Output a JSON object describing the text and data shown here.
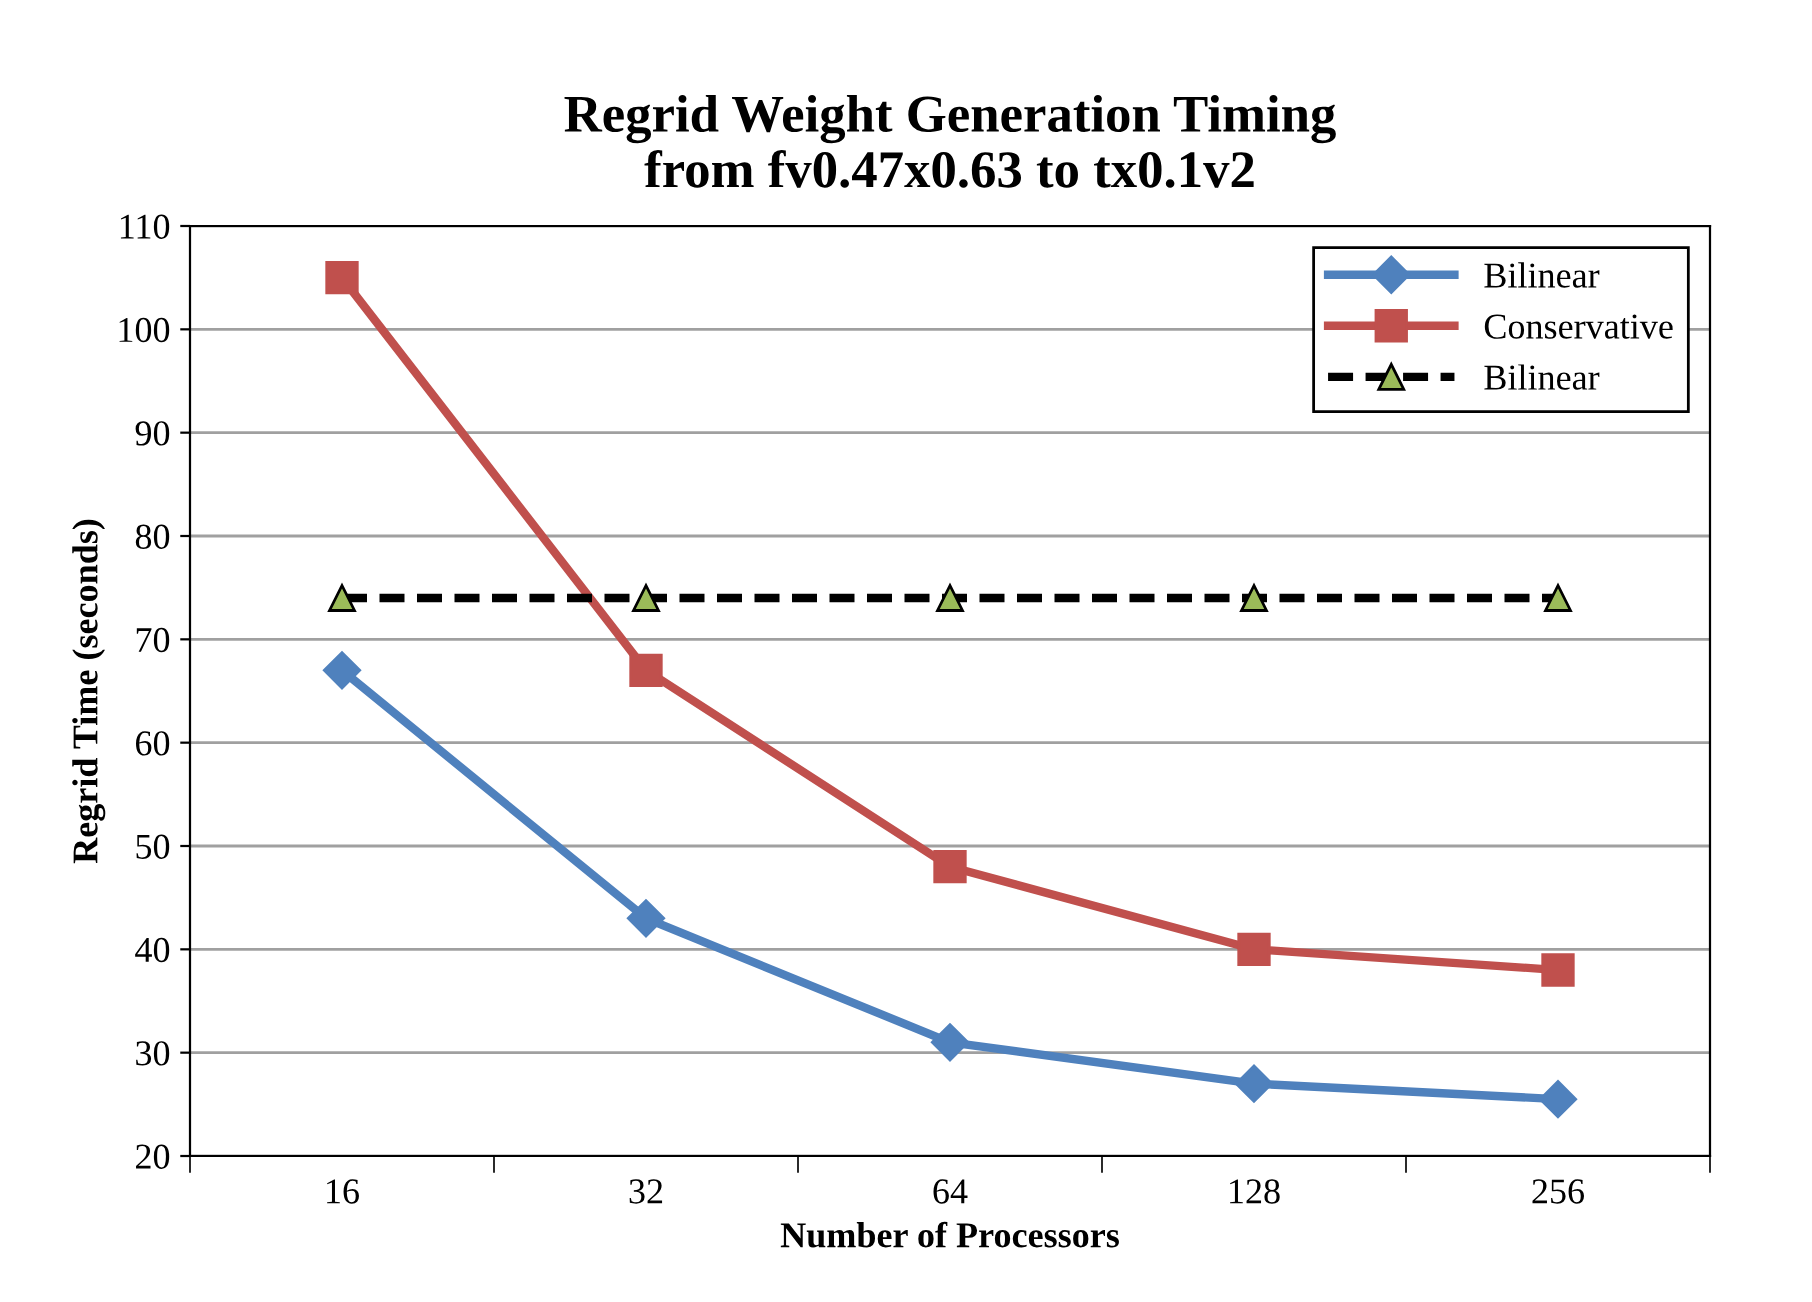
{
  "chart_data": {
    "type": "line",
    "title": "Regrid Weight Generation Timing\nfrom fv0.47x0.63 to tx0.1v2",
    "xlabel": "Number of Processors",
    "ylabel": "Regrid Time (seconds)",
    "categories": [
      "16",
      "32",
      "64",
      "128",
      "256"
    ],
    "series": [
      {
        "name": "Bilinear",
        "color": "#4f81bd",
        "marker": "diamond",
        "line_style": "solid",
        "values": [
          67,
          43,
          31,
          27,
          25.5
        ]
      },
      {
        "name": "Conservative",
        "color": "#c0504d",
        "marker": "square",
        "line_style": "solid",
        "values": [
          105,
          67,
          48,
          40,
          38
        ]
      },
      {
        "name": "Bilinear",
        "color": "#9bbb59",
        "marker": "triangle",
        "line_style": "dashed",
        "values": [
          74,
          74,
          74,
          74,
          74
        ]
      }
    ],
    "ylim": [
      20,
      110
    ],
    "yticks": [
      20,
      30,
      40,
      50,
      60,
      70,
      80,
      90,
      100,
      110
    ],
    "grid": "y",
    "legend": "top right"
  }
}
